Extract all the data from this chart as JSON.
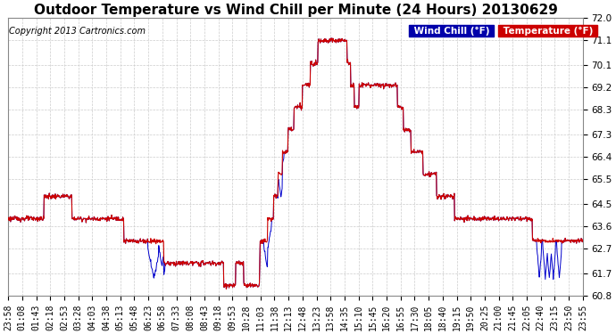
{
  "title": "Outdoor Temperature vs Wind Chill per Minute (24 Hours) 20130629",
  "copyright_text": "Copyright 2013 Cartronics.com",
  "legend_wind_chill": "Wind Chill (°F)",
  "legend_temperature": "Temperature (°F)",
  "wind_chill_color": "#0000cc",
  "temperature_color": "#cc0000",
  "legend_wc_bg": "#0000aa",
  "legend_temp_bg": "#cc0000",
  "ylim_min": 60.8,
  "ylim_max": 72.0,
  "yticks": [
    60.8,
    61.7,
    62.7,
    63.6,
    64.5,
    65.5,
    66.4,
    67.3,
    68.3,
    69.2,
    70.1,
    71.1,
    72.0
  ],
  "bg_color": "#ffffff",
  "plot_bg_color": "#ffffff",
  "grid_color": "#cccccc",
  "title_fontsize": 11,
  "copyright_fontsize": 7,
  "tick_fontsize": 7.5,
  "xtick_labels": [
    "23:58",
    "01:08",
    "01:43",
    "02:18",
    "02:53",
    "03:28",
    "04:03",
    "04:38",
    "05:13",
    "05:48",
    "06:23",
    "06:58",
    "07:33",
    "08:08",
    "08:43",
    "09:18",
    "09:53",
    "10:28",
    "11:03",
    "11:38",
    "12:13",
    "12:48",
    "13:23",
    "13:58",
    "14:35",
    "15:10",
    "15:45",
    "16:20",
    "16:55",
    "17:30",
    "18:05",
    "18:40",
    "19:15",
    "19:50",
    "20:25",
    "21:00",
    "21:45",
    "22:05",
    "22:40",
    "23:15",
    "23:50",
    "23:55"
  ]
}
